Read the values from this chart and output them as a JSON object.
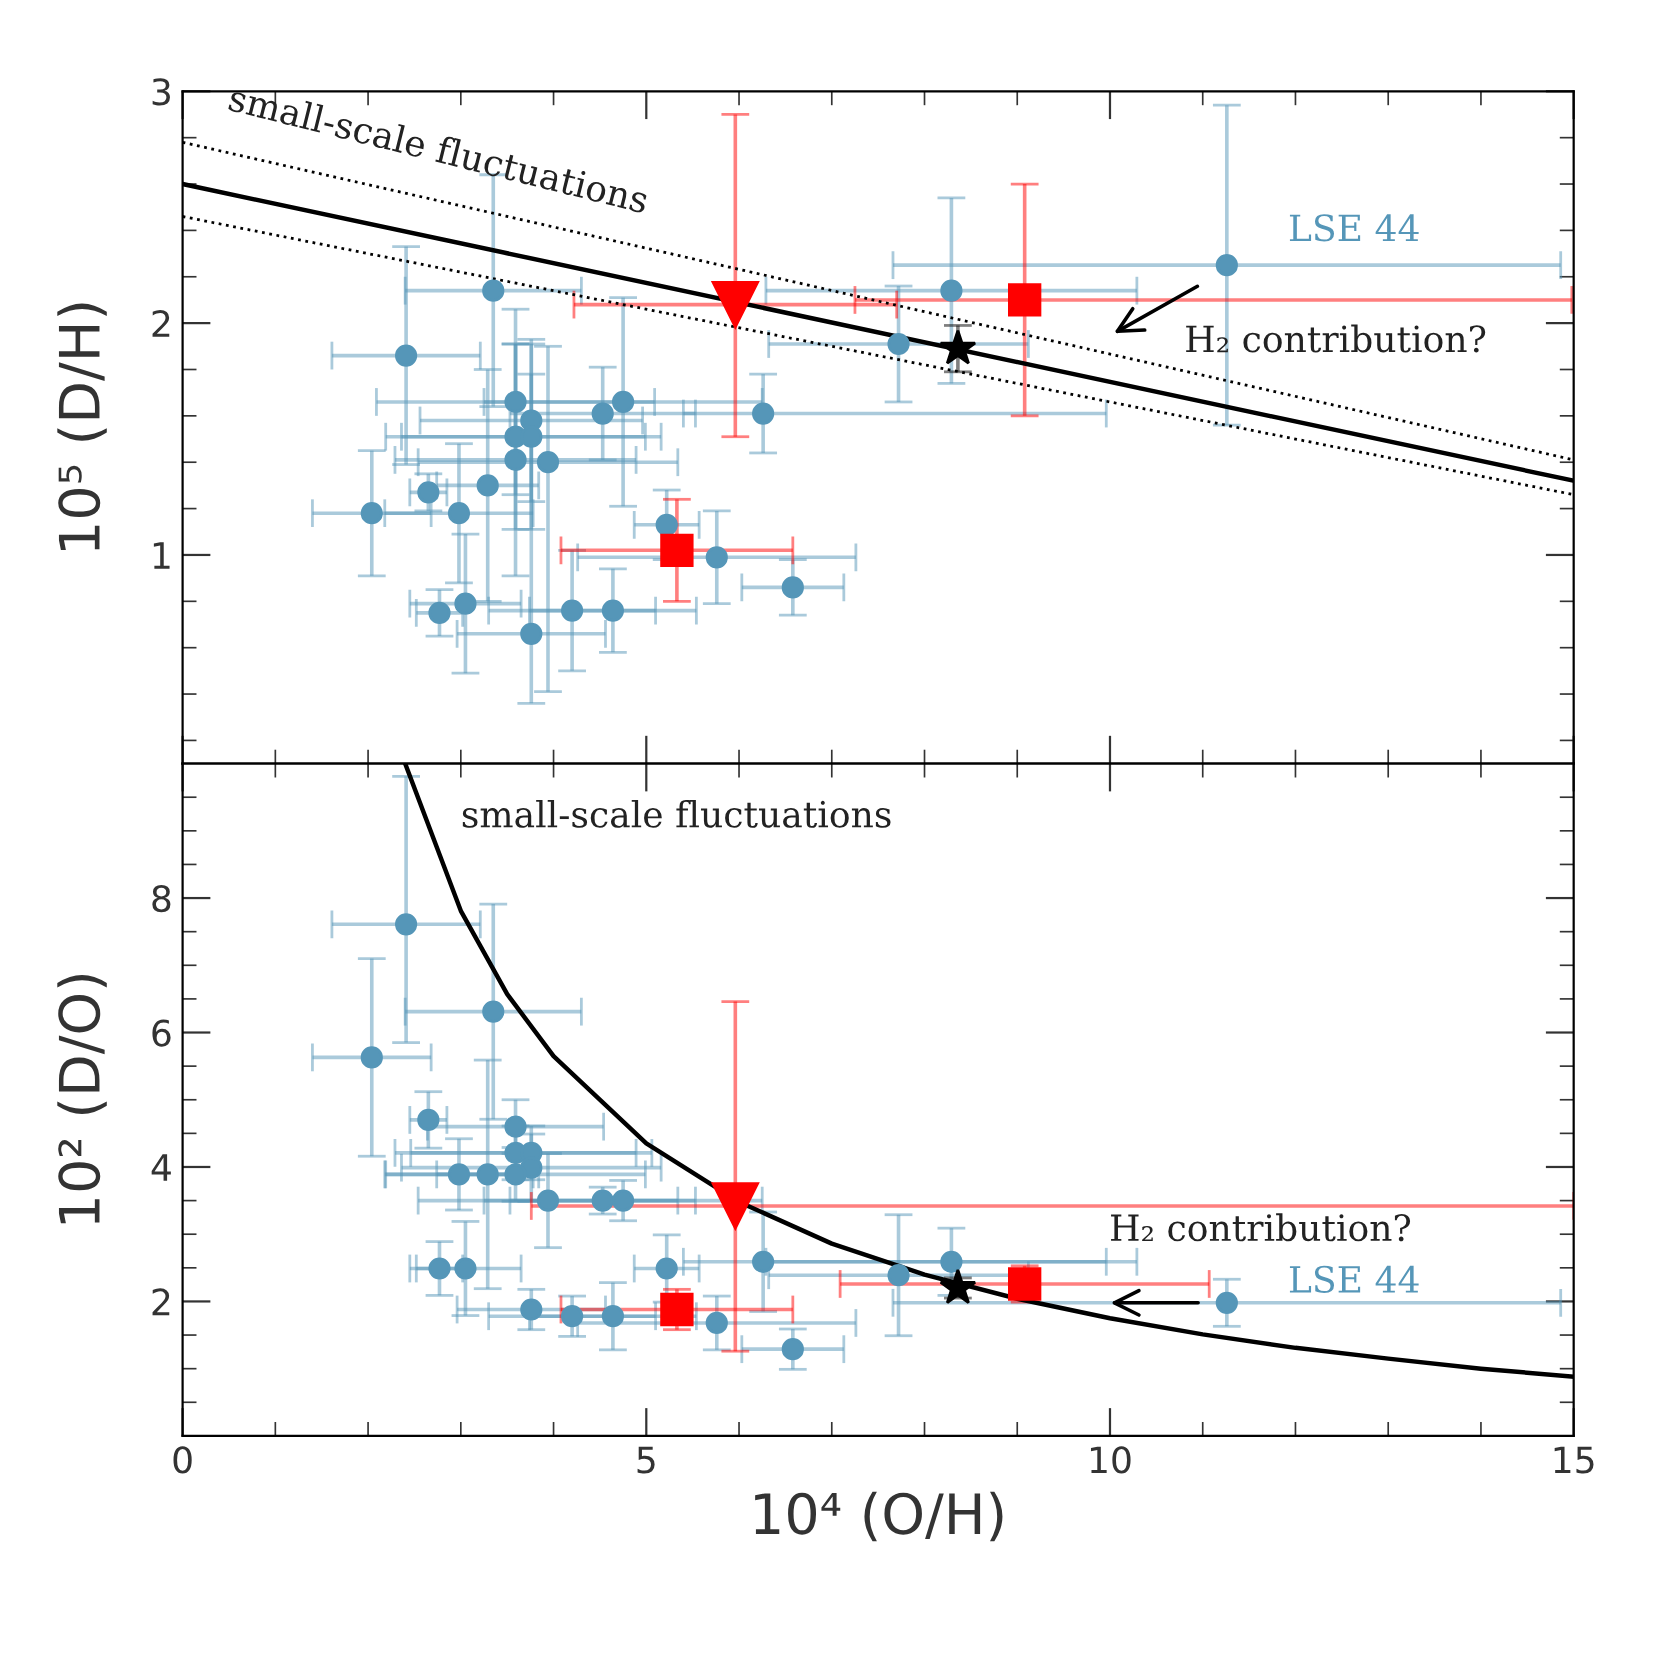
{
  "chart_data": [
    {
      "type": "scatter",
      "ylabel": "10⁵ (D/H)",
      "xlim": [
        0,
        15
      ],
      "ylim": [
        0.1,
        3
      ],
      "tick_labels": "y",
      "xticks": [
        0,
        {
          "value": 1,
          "label": null
        },
        {
          "value": 2,
          "label": null
        },
        {
          "value": 3,
          "label": null
        },
        {
          "value": 4,
          "label": null
        },
        5,
        {
          "value": 6,
          "label": null
        },
        {
          "value": 7,
          "label": null
        },
        {
          "value": 8,
          "label": null
        },
        {
          "value": 9,
          "label": null
        },
        10,
        {
          "value": 11,
          "label": null
        },
        {
          "value": 12,
          "label": null
        },
        {
          "value": 13,
          "label": null
        },
        {
          "value": 14,
          "label": null
        },
        15
      ],
      "yticks": [
        {
          "value": 0.2,
          "label": null
        },
        {
          "value": 0.4,
          "label": null
        },
        {
          "value": 0.6,
          "label": null
        },
        {
          "value": 0.8,
          "label": null
        },
        1,
        {
          "value": 1.2,
          "label": null
        },
        {
          "value": 1.4,
          "label": null
        },
        {
          "value": 1.6,
          "label": null
        },
        {
          "value": 1.8,
          "label": null
        },
        2,
        {
          "value": 2.2,
          "label": null
        },
        {
          "value": 2.4,
          "label": null
        },
        {
          "value": 2.6,
          "label": null
        },
        {
          "value": 2.8,
          "label": null
        },
        3
      ],
      "annotations": [
        "small-scale fluctuations",
        {
          "text": "LSE 44",
          "x": 11.26,
          "y": 2.25
        },
        "H₂ contribution?"
      ],
      "series": [
        {
          "type": "scatter",
          "color": "#5596b8",
          "marker": "circle",
          "x": [
            2.41,
            3.35,
            2.04,
            2.65,
            2.98,
            3.29,
            3.59,
            3.76,
            3.59,
            3.76,
            3.59,
            3.94,
            4.53,
            4.75,
            6.26,
            5.22,
            5.76,
            6.58,
            2.77,
            3.05,
            3.76,
            4.2,
            4.64,
            7.72,
            8.29,
            11.26
          ],
          "values": [
            1.86,
            2.14,
            1.18,
            1.27,
            1.18,
            1.3,
            1.66,
            1.58,
            1.51,
            1.51,
            1.41,
            1.4,
            1.61,
            1.66,
            1.61,
            1.13,
            0.99,
            0.86,
            0.75,
            0.79,
            0.66,
            0.76,
            0.76,
            1.91,
            2.14,
            2.25
          ],
          "errors": [
            0.47,
            0.5,
            0.27,
            0.08,
            0.3,
            0.5,
            0.4,
            0.35,
            0.4,
            0.4,
            0.5,
            [
              0.41,
              1.9
            ],
            0.2,
            0.45,
            0.17,
            0.15,
            0.2,
            0.12,
            0.1,
            0.3,
            [
              0.36,
              1.78
            ],
            0.26,
            0.18,
            0.25,
            0.4,
            0.69
          ],
          "xerrors": [
            0.8,
            0.95,
            0.64,
            0.2,
            0.8,
            0.55,
            1.5,
            1.2,
            1.4,
            1.4,
            1.3,
            1.4,
            1.0,
            1.5,
            [
              5.4,
              9.96
            ],
            0.35,
            1.5,
            0.55,
            0.25,
            0.6,
            0.8,
            0.9,
            0.9,
            1.4,
            2.0,
            3.6
          ]
        },
        {
          "type": "scatter",
          "color": "#ff0000",
          "marker": "square",
          "x": [
            5.33,
            9.08
          ],
          "values": [
            1.02,
            2.1
          ],
          "errors": [
            0.22,
            0.5
          ],
          "xerrors": [
            1.25,
            [
              7.25,
              14.98
            ]
          ]
        },
        {
          "type": "scatter",
          "color": "#ff0000",
          "marker": "triangle",
          "x": [
            5.96
          ],
          "values": [
            2.08
          ],
          "errors": [
            [
              1.51,
              2.9
            ]
          ],
          "xerrors": [
            1.74
          ]
        },
        {
          "type": "scatter",
          "color": "#000000",
          "marker": "star",
          "x": [
            8.36
          ],
          "values": [
            1.89
          ],
          "errors": [
            0.1
          ]
        },
        {
          "type": "line",
          "color": "#000000",
          "line_style": "solid",
          "x": [
            0,
            15
          ],
          "values": [
            2.6,
            1.32
          ]
        },
        {
          "type": "line",
          "color": "#000000",
          "line_style": "dotted",
          "x": [
            0,
            15
          ],
          "values": [
            2.78,
            1.41
          ]
        },
        {
          "type": "line",
          "color": "#000000",
          "line_style": "dotted",
          "x": [
            0,
            15
          ],
          "values": [
            2.46,
            1.26
          ]
        }
      ]
    },
    {
      "type": "scatter",
      "xlabel": "10⁴ (O/H)",
      "ylabel": "10² (D/O)",
      "xlim": [
        0,
        15
      ],
      "ylim": [
        0,
        10
      ],
      "xticks": [
        0,
        {
          "value": 1,
          "label": null
        },
        {
          "value": 2,
          "label": null
        },
        {
          "value": 3,
          "label": null
        },
        {
          "value": 4,
          "label": null
        },
        5,
        {
          "value": 6,
          "label": null
        },
        {
          "value": 7,
          "label": null
        },
        {
          "value": 8,
          "label": null
        },
        {
          "value": 9,
          "label": null
        },
        10,
        {
          "value": 11,
          "label": null
        },
        {
          "value": 12,
          "label": null
        },
        {
          "value": 13,
          "label": null
        },
        {
          "value": 14,
          "label": null
        },
        15
      ],
      "yticks": [
        {
          "value": 0.5,
          "label": null
        },
        {
          "value": 1,
          "label": null
        },
        {
          "value": 1.5,
          "label": null
        },
        2,
        {
          "value": 2.5,
          "label": null
        },
        {
          "value": 3,
          "label": null
        },
        {
          "value": 3.5,
          "label": null
        },
        4,
        {
          "value": 4.5,
          "label": null
        },
        {
          "value": 5,
          "label": null
        },
        {
          "value": 5.5,
          "label": null
        },
        6,
        {
          "value": 6.5,
          "label": null
        },
        {
          "value": 7,
          "label": null
        },
        {
          "value": 7.5,
          "label": null
        },
        8,
        {
          "value": 8.5,
          "label": null
        },
        {
          "value": 9,
          "label": null
        },
        {
          "value": 9.5,
          "label": null
        }
      ],
      "annotations": [
        "small-scale fluctuations",
        {
          "text": "LSE 44",
          "x": 11.26,
          "y": 1.98
        },
        "H₂ contribution?"
      ],
      "series": [
        {
          "type": "scatter",
          "color": "#5596b8",
          "marker": "circle",
          "x": [
            2.41,
            3.35,
            2.04,
            2.65,
            3.59,
            3.59,
            3.76,
            3.76,
            2.98,
            3.29,
            3.59,
            3.94,
            4.53,
            4.75,
            6.26,
            5.22,
            2.77,
            3.05,
            3.76,
            4.2,
            4.64,
            5.76,
            6.58,
            7.72,
            8.29,
            11.26
          ],
          "values": [
            7.61,
            6.31,
            5.63,
            4.7,
            4.6,
            4.21,
            4.21,
            3.99,
            3.89,
            3.89,
            3.89,
            3.5,
            3.5,
            3.5,
            2.59,
            2.49,
            2.49,
            2.49,
            1.88,
            1.78,
            1.78,
            1.68,
            1.29,
            2.39,
            2.59,
            1.98
          ],
          "errors": [
            [
              5.85,
              9.81
            ],
            1.6,
            1.47,
            0.42,
            0.4,
            0.4,
            0.4,
            0.5,
            0.53,
            1.7,
            0.4,
            0.7,
            0.2,
            0.3,
            0.74,
            0.5,
            0.4,
            0.7,
            0.3,
            0.3,
            0.5,
            0.4,
            0.3,
            0.9,
            0.5,
            0.35
          ],
          "xerrors": [
            0.8,
            0.95,
            0.64,
            0.2,
            0.95,
            1.3,
            1.3,
            1.4,
            0.8,
            0.55,
            1.4,
            1.4,
            1.0,
            1.5,
            [
              5.4,
              9.96
            ],
            0.35,
            0.25,
            0.6,
            0.8,
            0.9,
            0.9,
            1.5,
            0.55,
            1.4,
            2.0,
            3.6
          ]
        },
        {
          "type": "scatter",
          "color": "#ff0000",
          "marker": "square",
          "x": [
            5.33,
            9.08
          ],
          "values": [
            1.88,
            2.26
          ],
          "errors": [
            0.3,
            0.27
          ],
          "xerrors": [
            1.25,
            1.99
          ]
        },
        {
          "type": "scatter",
          "color": "#ff0000",
          "marker": "triangle",
          "x": [
            5.96
          ],
          "values": [
            3.42
          ],
          "errors": [
            [
              1.26,
              6.46
            ]
          ],
          "xerrors": [
            [
              3.76,
              15
            ]
          ]
        },
        {
          "type": "scatter",
          "color": "#000000",
          "marker": "star",
          "x": [
            8.36
          ],
          "values": [
            2.2
          ],
          "errors": [
            0.15
          ]
        },
        {
          "type": "line",
          "color": "#000000",
          "line_style": "solid",
          "x": [
            2.4,
            3,
            3.5,
            4,
            5,
            6,
            7,
            8,
            9,
            10,
            11,
            12,
            13,
            14,
            15
          ],
          "values": [
            10.0,
            7.81,
            6.57,
            5.65,
            4.35,
            3.48,
            2.86,
            2.4,
            2.04,
            1.75,
            1.51,
            1.31,
            1.15,
            1.0,
            0.88
          ]
        }
      ]
    }
  ]
}
